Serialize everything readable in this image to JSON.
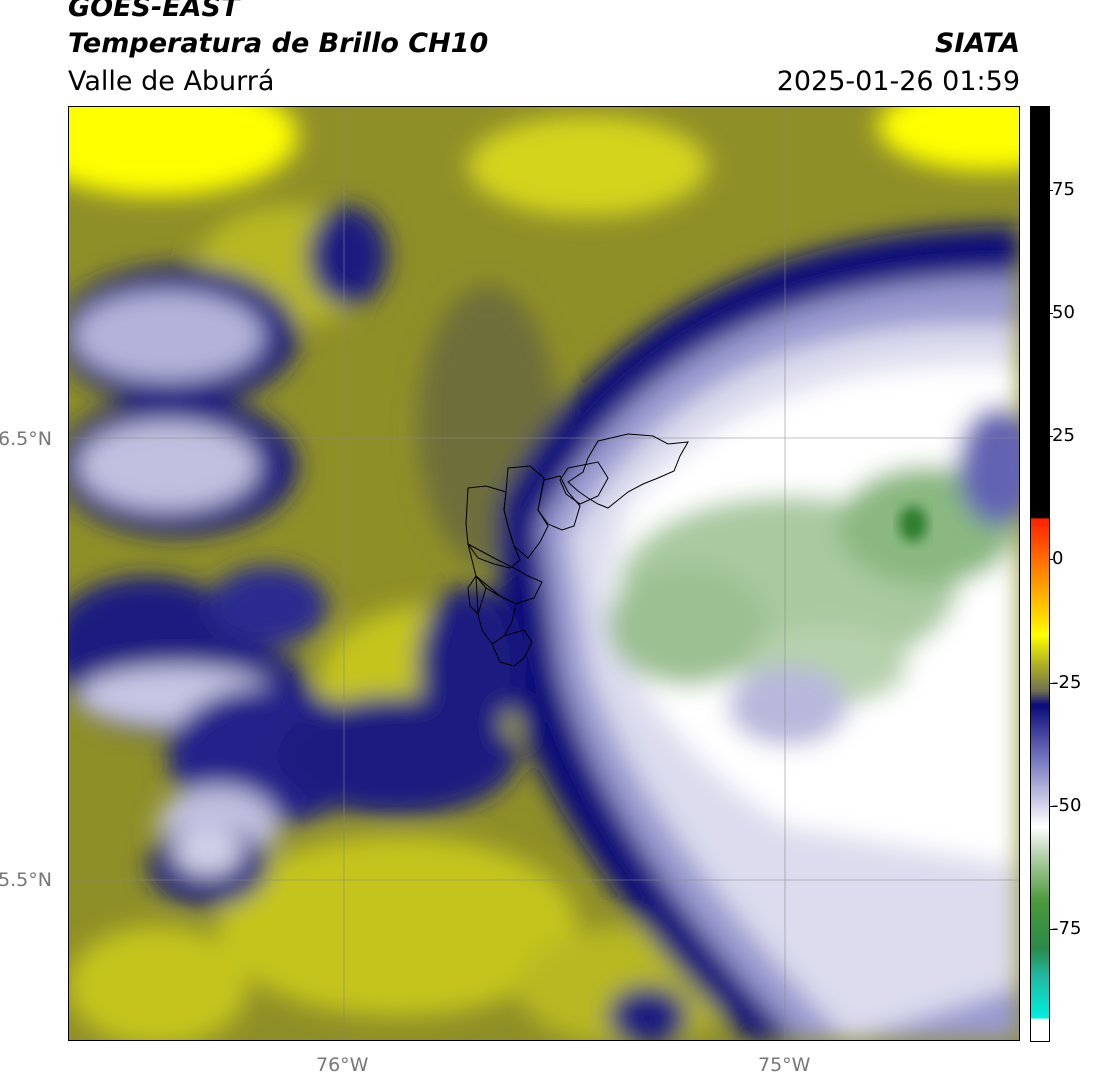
{
  "header": {
    "satellite": "GOES-EAST",
    "product": "Temperatura de Brillo CH10",
    "region": "Valle de Aburrá",
    "brand": "SIATA",
    "timestamp": "2025-01-26 01:59"
  },
  "map": {
    "lat_labels": [
      "6.5°N",
      "5.5°N"
    ],
    "lon_labels": [
      "76°W",
      "75°W"
    ]
  },
  "colorbar": {
    "ticks": [
      "75",
      "50",
      "25",
      "0",
      "-25",
      "-50",
      "-75"
    ],
    "colors": {
      "black": "#000000",
      "red": "#ff2a00",
      "orange": "#ff9900",
      "yellow": "#ffff00",
      "olive": "#8a8a2a",
      "navy": "#0a0a7a",
      "lavender": "#c8c8e6",
      "white": "#ffffff",
      "green": "#2e8b2e",
      "cyan": "#00e5d8"
    }
  }
}
